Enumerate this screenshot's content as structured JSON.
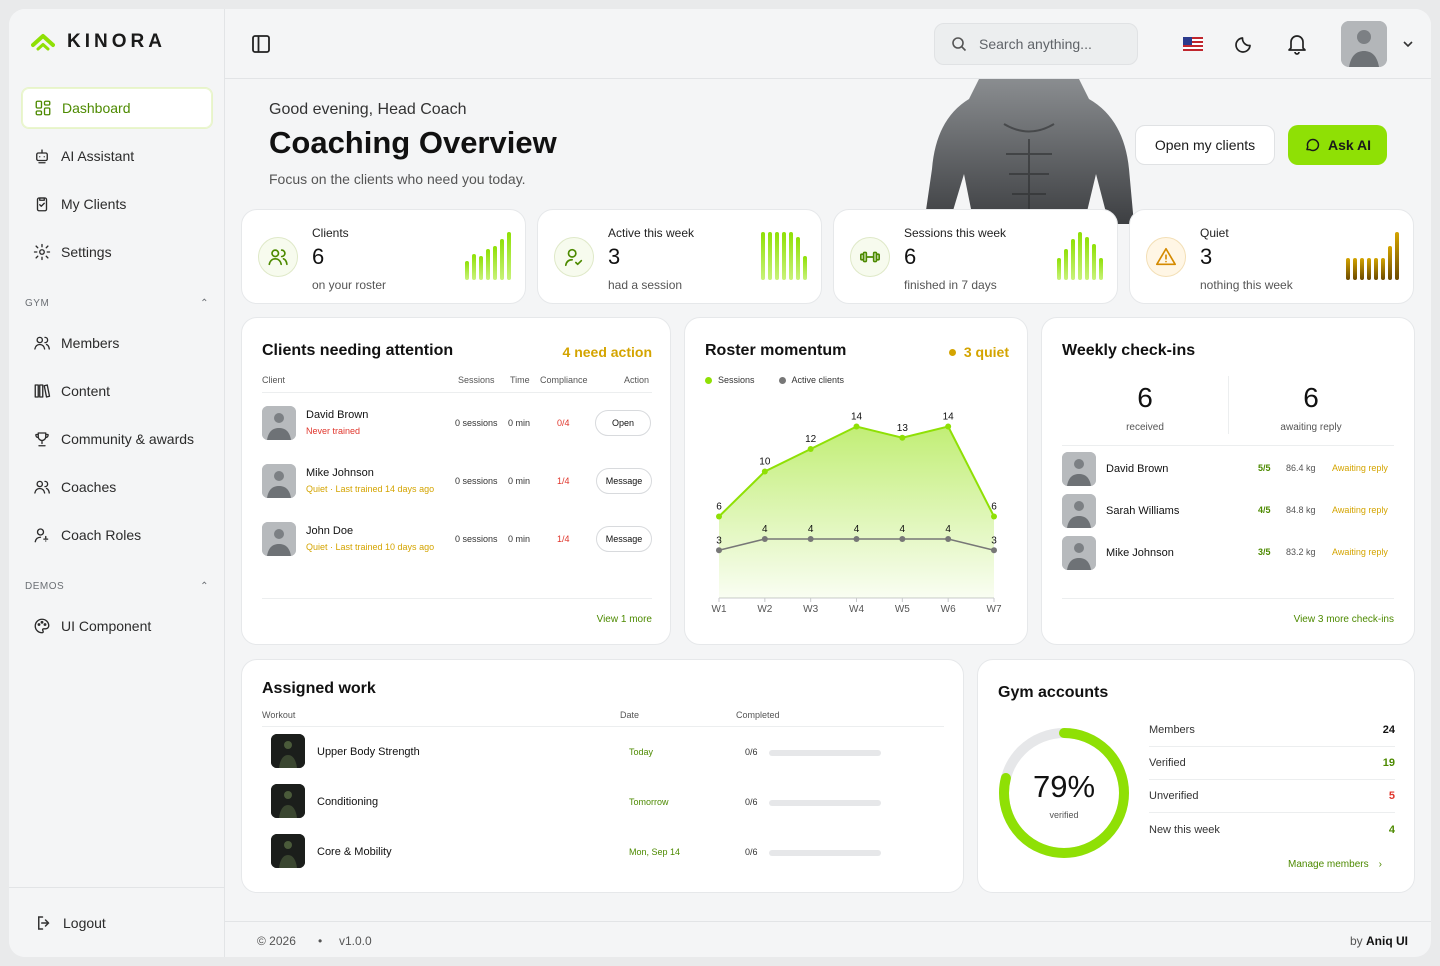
{
  "brand": {
    "name": "KINORA",
    "accent": "#8fe005",
    "accent_dark": "#4d8a00"
  },
  "sidebar": {
    "main_items": [
      {
        "label": "Dashboard",
        "icon": "dashboard-icon",
        "active": true
      },
      {
        "label": "AI Assistant",
        "icon": "robot-icon"
      },
      {
        "label": "My Clients",
        "icon": "clipboard-icon"
      },
      {
        "label": "Settings",
        "icon": "gear-icon"
      }
    ],
    "gym_label": "GYM",
    "gym_items": [
      {
        "label": "Members",
        "icon": "users-icon"
      },
      {
        "label": "Content",
        "icon": "library-icon"
      },
      {
        "label": "Community & awards",
        "icon": "trophy-icon"
      },
      {
        "label": "Coaches",
        "icon": "users-icon"
      },
      {
        "label": "Coach Roles",
        "icon": "user-role-icon"
      }
    ],
    "demos_label": "DEMOS",
    "demos_items": [
      {
        "label": "UI Component",
        "icon": "palette-icon"
      }
    ],
    "logout": "Logout"
  },
  "topbar": {
    "search_placeholder": "Search anything..."
  },
  "hero": {
    "greeting": "Good evening, Head Coach",
    "title": "Coaching Overview",
    "subtitle": "Focus on the clients who need you today.",
    "open_clients": "Open my clients",
    "ask_ai": "Ask AI"
  },
  "stats": [
    {
      "title": "Clients",
      "value": "6",
      "sub": "on your roster",
      "bars": [
        0.4,
        0.55,
        0.5,
        0.65,
        0.7,
        0.85,
        1.0
      ]
    },
    {
      "title": "Active this week",
      "value": "3",
      "sub": "had a session",
      "bars": [
        1,
        1,
        1,
        1,
        1,
        0.9,
        0.5
      ]
    },
    {
      "title": "Sessions this week",
      "value": "6",
      "sub": "finished in 7 days",
      "bars": [
        0.45,
        0.65,
        0.85,
        1,
        0.9,
        0.75,
        0.45
      ]
    },
    {
      "title": "Quiet",
      "value": "3",
      "sub": "nothing this week",
      "bars": [
        0.45,
        0.45,
        0.45,
        0.45,
        0.45,
        0.45,
        0.7,
        1
      ]
    }
  ],
  "attention": {
    "title": "Clients needing attention",
    "badge": "4 need action",
    "headers": [
      "Client",
      "Sessions",
      "Time",
      "Compliance",
      "Action"
    ],
    "rows": [
      {
        "name": "David Brown",
        "note": "Never trained",
        "note_color": "#e0362c",
        "sessions": "0 sessions",
        "time": "0 min",
        "compliance": "0/4",
        "action": "Open"
      },
      {
        "name": "Mike Johnson",
        "note": "Quiet · Last trained 14 days ago",
        "note_color": "#d4a400",
        "sessions": "0 sessions",
        "time": "0 min",
        "compliance": "1/4",
        "action": "Message"
      },
      {
        "name": "John Doe",
        "note": "Quiet · Last trained 10 days ago",
        "note_color": "#d4a400",
        "sessions": "0 sessions",
        "time": "0 min",
        "compliance": "1/4",
        "action": "Message"
      }
    ],
    "view_more": "View 1 more"
  },
  "momentum": {
    "title": "Roster momentum",
    "badge": "3 quiet",
    "legend": [
      "Sessions",
      "Active clients"
    ]
  },
  "chart_data": {
    "type": "area",
    "categories": [
      "W1",
      "W2",
      "W3",
      "W4",
      "W5",
      "W6",
      "W7"
    ],
    "series": [
      {
        "name": "Sessions",
        "values": [
          6,
          10,
          12,
          14,
          13,
          14,
          6
        ],
        "color": "#8fe005"
      },
      {
        "name": "Active clients",
        "values": [
          3,
          4,
          4,
          4,
          4,
          4,
          3
        ],
        "color": "#777777"
      }
    ],
    "ylim": [
      0,
      16
    ]
  },
  "checkins": {
    "title": "Weekly check-ins",
    "received": "6",
    "received_label": "received",
    "awaiting": "6",
    "awaiting_label": "awaiting reply",
    "rows": [
      {
        "name": "David Brown",
        "score": "5/5",
        "weight": "86.4 kg",
        "status": "Awaiting reply"
      },
      {
        "name": "Sarah Williams",
        "score": "4/5",
        "weight": "84.8 kg",
        "status": "Awaiting reply"
      },
      {
        "name": "Mike Johnson",
        "score": "3/5",
        "weight": "83.2 kg",
        "status": "Awaiting reply"
      }
    ],
    "view_more": "View 3 more check-ins"
  },
  "work": {
    "title": "Assigned work",
    "headers": [
      "Workout",
      "Date",
      "Completed"
    ],
    "rows": [
      {
        "name": "Upper Body Strength",
        "date": "Today",
        "completed": "0/6",
        "progress": 0
      },
      {
        "name": "Conditioning",
        "date": "Tomorrow",
        "completed": "0/6",
        "progress": 0
      },
      {
        "name": "Core & Mobility",
        "date": "Mon, Sep 14",
        "completed": "0/6",
        "progress": 0
      }
    ]
  },
  "accounts": {
    "title": "Gym accounts",
    "percent": "79%",
    "percent_value": 0.79,
    "percent_label": "verified",
    "rows": [
      {
        "label": "Members",
        "value": "24",
        "color": "#111111"
      },
      {
        "label": "Verified",
        "value": "19",
        "color": "#4d8a00"
      },
      {
        "label": "Unverified",
        "value": "5",
        "color": "#e0362c"
      },
      {
        "label": "New this week",
        "value": "4",
        "color": "#4d8a00"
      }
    ],
    "manage": "Manage members"
  },
  "footer": {
    "copyright": "© 2026",
    "version": "v1.0.0",
    "by": "by",
    "author": "Aniq UI"
  }
}
